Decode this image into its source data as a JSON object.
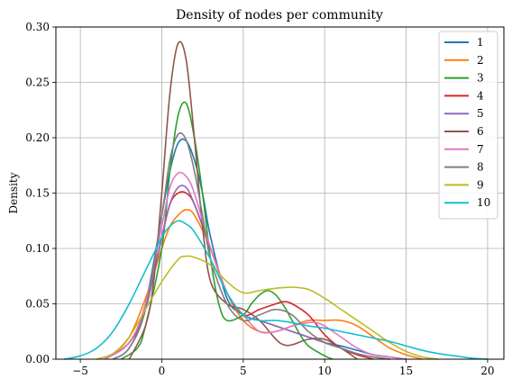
{
  "chart_data": {
    "type": "line",
    "title": "Density of nodes per community",
    "xlabel": "",
    "ylabel": "Density",
    "xlim": [
      -6.5,
      21
    ],
    "ylim": [
      0,
      0.3
    ],
    "xticks": [
      -5,
      0,
      5,
      10,
      15,
      20
    ],
    "yticks": [
      0.0,
      0.05,
      0.1,
      0.15,
      0.2,
      0.25,
      0.3
    ],
    "xtick_labels": [
      "−5",
      "0",
      "5",
      "10",
      "15",
      "20"
    ],
    "ytick_labels": [
      "0.00",
      "0.05",
      "0.10",
      "0.15",
      "0.20",
      "0.25",
      "0.30"
    ],
    "grid": true,
    "legend_position": "top-right",
    "series": [
      {
        "name": "1",
        "color": "#1f77b4",
        "x": [
          -3.5,
          -2,
          -1,
          0,
          0.5,
          1,
          1.5,
          2,
          2.5,
          3,
          4,
          5,
          6,
          7,
          8,
          9,
          10,
          11,
          12,
          13,
          14,
          15
        ],
        "y": [
          0,
          0.015,
          0.05,
          0.13,
          0.17,
          0.195,
          0.197,
          0.18,
          0.15,
          0.11,
          0.055,
          0.04,
          0.035,
          0.03,
          0.025,
          0.02,
          0.015,
          0.012,
          0.008,
          0.004,
          0.002,
          0
        ]
      },
      {
        "name": "2",
        "color": "#ff7f0e",
        "x": [
          -4,
          -3,
          -2,
          -1,
          0,
          0.5,
          1,
          1.5,
          2,
          3,
          4,
          5,
          6,
          7,
          8,
          9,
          10,
          11,
          12,
          13,
          14,
          15,
          16
        ],
        "y": [
          0,
          0.005,
          0.02,
          0.055,
          0.1,
          0.12,
          0.13,
          0.135,
          0.13,
          0.1,
          0.06,
          0.035,
          0.025,
          0.025,
          0.03,
          0.035,
          0.035,
          0.035,
          0.03,
          0.02,
          0.01,
          0.004,
          0
        ]
      },
      {
        "name": "3",
        "color": "#2ca02c",
        "x": [
          -2.5,
          -1.5,
          -1,
          0,
          0.5,
          1,
          1.5,
          2,
          2.5,
          3,
          3.5,
          4,
          5,
          5.5,
          6,
          6.5,
          7,
          7.5,
          8,
          8.5,
          9,
          10,
          10.5
        ],
        "y": [
          0,
          0.01,
          0.03,
          0.1,
          0.17,
          0.22,
          0.231,
          0.2,
          0.15,
          0.09,
          0.05,
          0.035,
          0.04,
          0.05,
          0.058,
          0.062,
          0.058,
          0.048,
          0.035,
          0.022,
          0.012,
          0.003,
          0
        ]
      },
      {
        "name": "4",
        "color": "#d62728",
        "x": [
          -3.5,
          -2,
          -1,
          0,
          0.5,
          1,
          1.5,
          2,
          3,
          4,
          5,
          6,
          7,
          7.5,
          8,
          9,
          10,
          11,
          12,
          13
        ],
        "y": [
          0,
          0.015,
          0.045,
          0.11,
          0.14,
          0.15,
          0.15,
          0.14,
          0.1,
          0.06,
          0.04,
          0.045,
          0.05,
          0.052,
          0.05,
          0.04,
          0.022,
          0.01,
          0.004,
          0
        ]
      },
      {
        "name": "5",
        "color": "#9467bd",
        "x": [
          -3,
          -2,
          -1,
          0,
          0.5,
          1,
          1.5,
          2,
          3,
          4,
          5,
          6,
          7,
          8,
          9,
          10,
          11,
          12,
          13,
          14
        ],
        "y": [
          0,
          0.01,
          0.045,
          0.11,
          0.14,
          0.155,
          0.155,
          0.14,
          0.1,
          0.06,
          0.04,
          0.035,
          0.03,
          0.025,
          0.02,
          0.015,
          0.01,
          0.005,
          0.002,
          0
        ]
      },
      {
        "name": "6",
        "color": "#8c564b",
        "x": [
          -2,
          -1,
          -0.5,
          0,
          0.5,
          1,
          1.5,
          2,
          2.5,
          3,
          4,
          5,
          6,
          7,
          7.5,
          8,
          9,
          10,
          11,
          12
        ],
        "y": [
          0,
          0.03,
          0.07,
          0.15,
          0.24,
          0.285,
          0.27,
          0.2,
          0.12,
          0.07,
          0.05,
          0.045,
          0.035,
          0.018,
          0.013,
          0.013,
          0.018,
          0.018,
          0.01,
          0
        ]
      },
      {
        "name": "7",
        "color": "#e377c2",
        "x": [
          -3.5,
          -2,
          -1,
          0,
          0.5,
          1,
          1.5,
          2,
          3,
          4,
          5,
          6,
          7,
          8,
          9,
          9.5,
          10,
          11,
          12,
          13,
          14,
          15
        ],
        "y": [
          0,
          0.015,
          0.05,
          0.12,
          0.155,
          0.168,
          0.165,
          0.15,
          0.1,
          0.06,
          0.04,
          0.025,
          0.025,
          0.03,
          0.033,
          0.033,
          0.03,
          0.02,
          0.01,
          0.004,
          0.002,
          0
        ]
      },
      {
        "name": "8",
        "color": "#7f7f7f",
        "x": [
          -3,
          -2,
          -1,
          0,
          0.5,
          1,
          1.5,
          2,
          2.5,
          3,
          4,
          5,
          6,
          7,
          8,
          9,
          10,
          11,
          12,
          13,
          14
        ],
        "y": [
          0,
          0.01,
          0.045,
          0.13,
          0.18,
          0.203,
          0.198,
          0.17,
          0.13,
          0.09,
          0.05,
          0.035,
          0.04,
          0.045,
          0.04,
          0.025,
          0.015,
          0.01,
          0.005,
          0.002,
          0
        ]
      },
      {
        "name": "9",
        "color": "#bcbd22",
        "x": [
          -4,
          -3,
          -2,
          -1,
          0,
          1,
          1.5,
          2,
          3,
          4,
          5,
          6,
          7,
          8,
          9,
          10,
          11,
          12,
          13,
          14,
          15,
          16,
          17
        ],
        "y": [
          0,
          0.005,
          0.02,
          0.045,
          0.07,
          0.09,
          0.093,
          0.092,
          0.085,
          0.07,
          0.06,
          0.062,
          0.064,
          0.065,
          0.063,
          0.055,
          0.045,
          0.035,
          0.025,
          0.015,
          0.007,
          0.002,
          0
        ]
      },
      {
        "name": "10",
        "color": "#17becf",
        "x": [
          -6,
          -5,
          -4,
          -3,
          -2,
          -1,
          0,
          0.5,
          1,
          1.5,
          2,
          3,
          4,
          5,
          6,
          7,
          8,
          9,
          10,
          11,
          12,
          13,
          14,
          15,
          16,
          17,
          18,
          19,
          20
        ],
        "y": [
          0,
          0.003,
          0.01,
          0.025,
          0.05,
          0.08,
          0.11,
          0.12,
          0.125,
          0.122,
          0.115,
          0.09,
          0.06,
          0.04,
          0.035,
          0.035,
          0.033,
          0.03,
          0.028,
          0.025,
          0.022,
          0.019,
          0.016,
          0.012,
          0.008,
          0.005,
          0.003,
          0.001,
          0
        ]
      }
    ]
  }
}
